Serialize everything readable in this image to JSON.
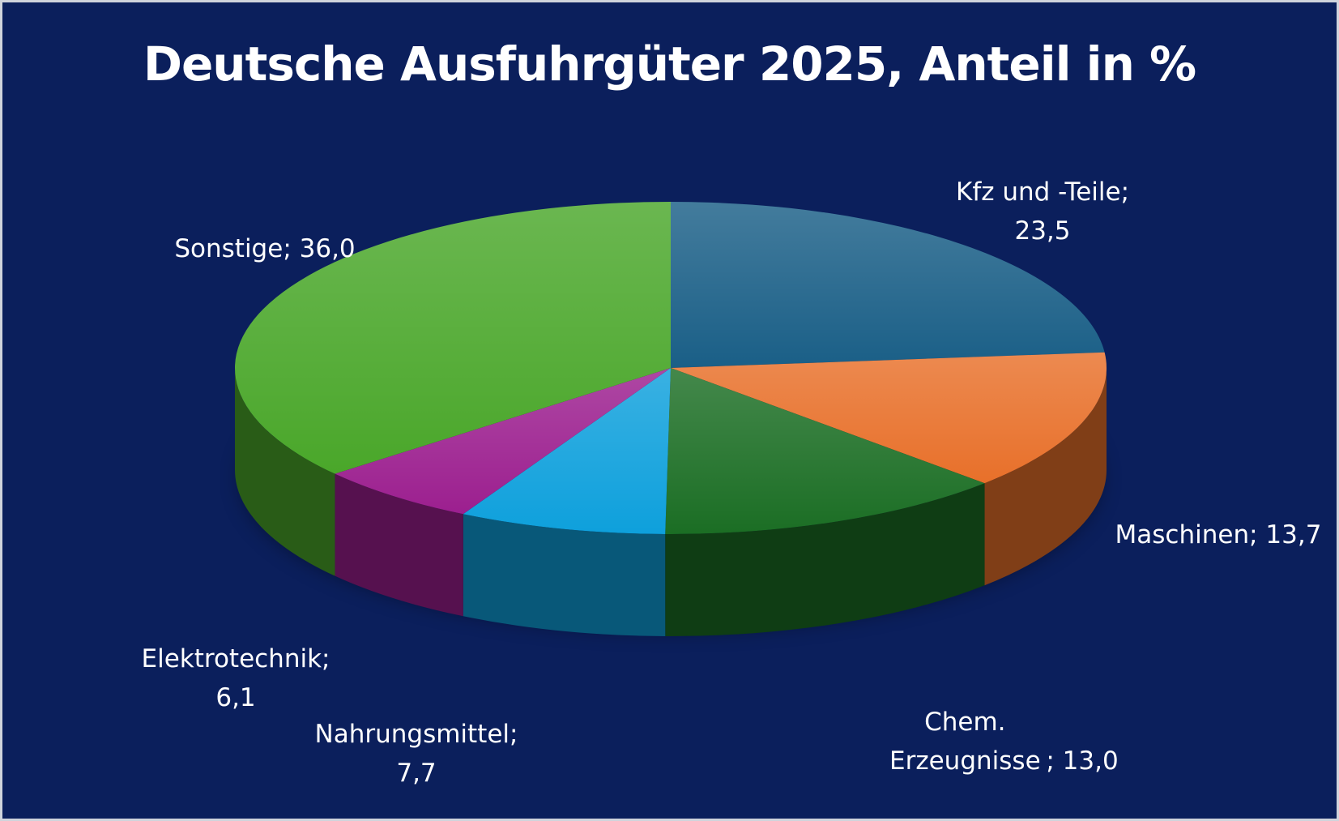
{
  "chart_data": {
    "type": "pie3d",
    "title": "Deutsche Ausfuhrgüter 2025, Anteil in %",
    "categories": [
      "Kfz und -Teile",
      "Maschinen",
      "Chem. Erzeugnisse",
      "Nahrungsmittel",
      "Elektrotechnik",
      "Sonstige"
    ],
    "values": [
      23.5,
      13.7,
      13.0,
      7.7,
      6.1,
      36.0
    ],
    "value_labels": [
      "23,5",
      "13,7",
      "13,0",
      "7,7",
      "6,1",
      "36,0"
    ],
    "label_separator": "; ",
    "colors": [
      "#1a5f87",
      "#e8702a",
      "#1b6e24",
      "#0ea0dc",
      "#9c1f8f",
      "#4aa72a"
    ]
  }
}
